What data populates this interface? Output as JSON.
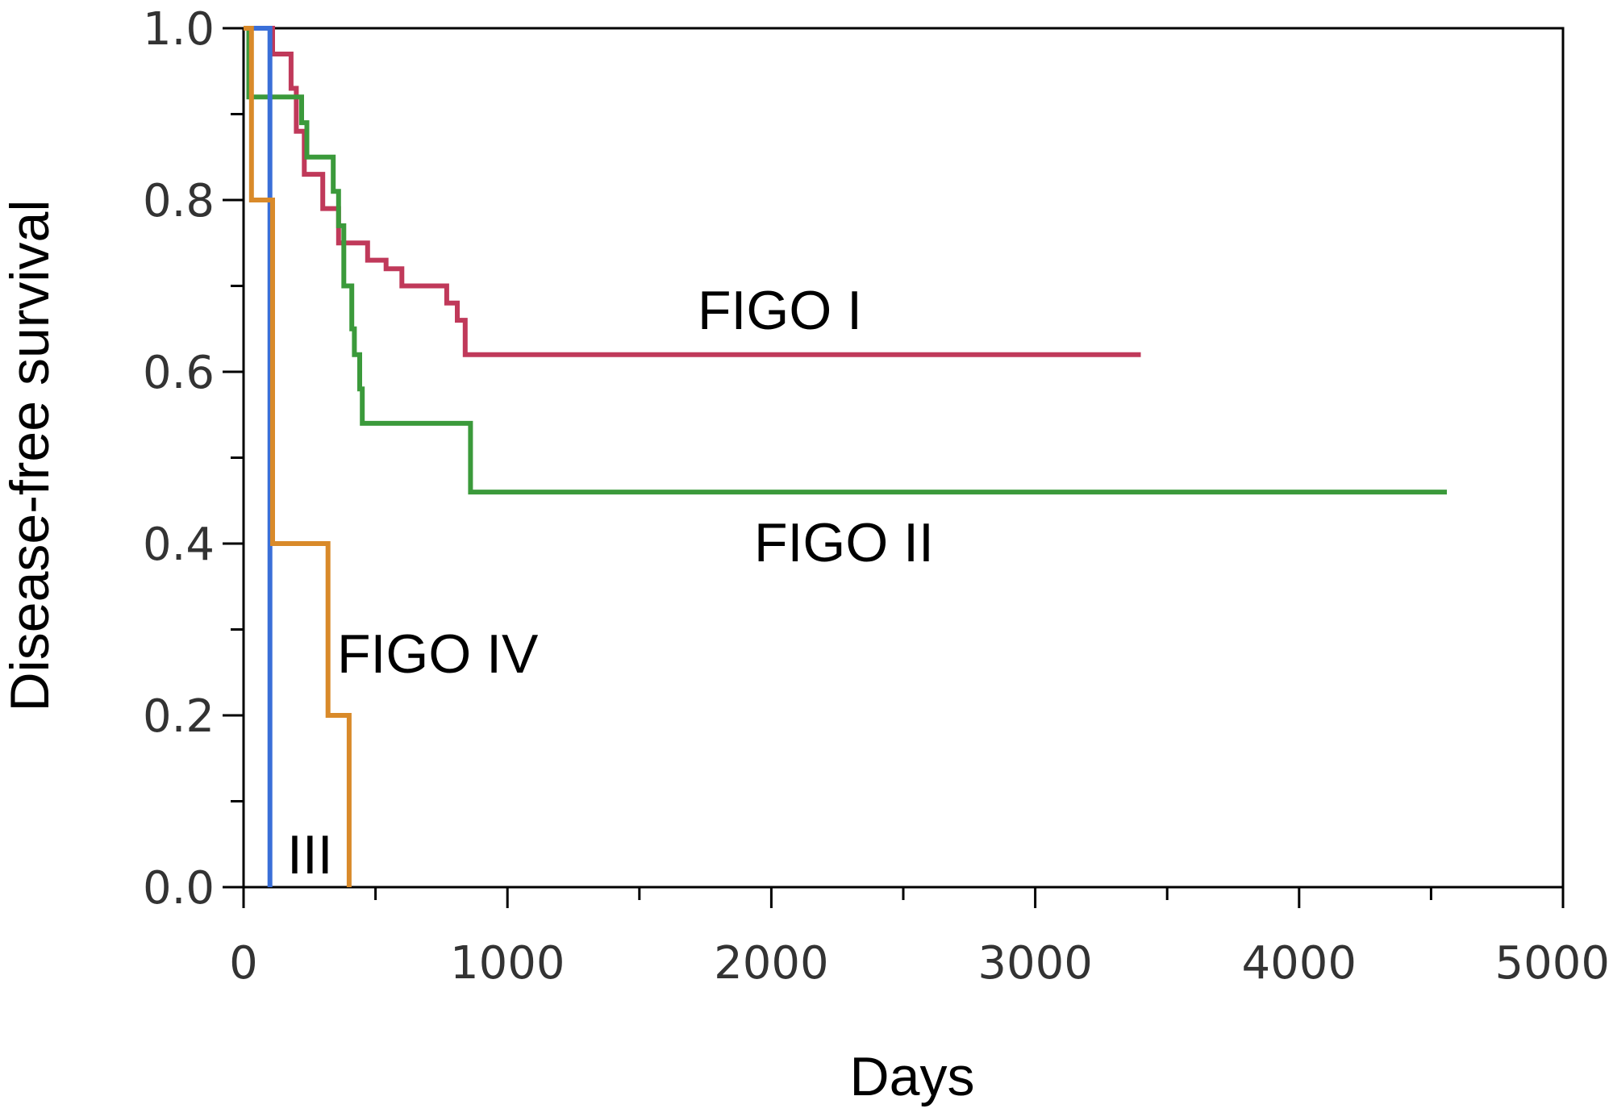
{
  "chart_data": {
    "type": "line",
    "step": true,
    "xlabel": "Days",
    "ylabel": "Disease-free survival",
    "xlim": [
      0,
      5000
    ],
    "ylim": [
      0.0,
      1.0
    ],
    "x_ticks": [
      0,
      1000,
      2000,
      3000,
      4000,
      5000
    ],
    "x_minor_ticks": [
      500,
      1500,
      2500,
      3500,
      4500
    ],
    "x_tick_labels": [
      "0",
      "1000",
      "2000",
      "3000",
      "4000",
      "5000"
    ],
    "y_ticks": [
      0.0,
      0.2,
      0.4,
      0.6,
      0.8,
      1.0
    ],
    "y_minor_ticks": [
      0.1,
      0.3,
      0.5,
      0.7,
      0.9
    ],
    "y_tick_labels": [
      "0.0",
      "0.2",
      "0.4",
      "0.6",
      "0.8",
      "1.0"
    ],
    "grid": false,
    "series": [
      {
        "name": "FIGO I",
        "color": "#c0395a",
        "points": [
          [
            0,
            1.0
          ],
          [
            110,
            1.0
          ],
          [
            110,
            0.97
          ],
          [
            180,
            0.97
          ],
          [
            180,
            0.93
          ],
          [
            200,
            0.93
          ],
          [
            200,
            0.88
          ],
          [
            230,
            0.88
          ],
          [
            230,
            0.83
          ],
          [
            300,
            0.83
          ],
          [
            300,
            0.79
          ],
          [
            360,
            0.79
          ],
          [
            360,
            0.75
          ],
          [
            470,
            0.75
          ],
          [
            470,
            0.73
          ],
          [
            540,
            0.73
          ],
          [
            540,
            0.72
          ],
          [
            600,
            0.72
          ],
          [
            600,
            0.7
          ],
          [
            770,
            0.7
          ],
          [
            770,
            0.68
          ],
          [
            810,
            0.68
          ],
          [
            810,
            0.66
          ],
          [
            840,
            0.66
          ],
          [
            840,
            0.62
          ],
          [
            3400,
            0.62
          ]
        ]
      },
      {
        "name": "FIGO II",
        "color": "#3b9a3b",
        "points": [
          [
            0,
            1.0
          ],
          [
            20,
            1.0
          ],
          [
            20,
            0.92
          ],
          [
            220,
            0.92
          ],
          [
            220,
            0.89
          ],
          [
            240,
            0.89
          ],
          [
            240,
            0.85
          ],
          [
            340,
            0.85
          ],
          [
            340,
            0.81
          ],
          [
            360,
            0.81
          ],
          [
            360,
            0.77
          ],
          [
            380,
            0.77
          ],
          [
            380,
            0.7
          ],
          [
            410,
            0.7
          ],
          [
            410,
            0.65
          ],
          [
            420,
            0.65
          ],
          [
            420,
            0.62
          ],
          [
            440,
            0.62
          ],
          [
            440,
            0.58
          ],
          [
            450,
            0.58
          ],
          [
            450,
            0.54
          ],
          [
            860,
            0.54
          ],
          [
            860,
            0.46
          ],
          [
            4560,
            0.46
          ]
        ]
      },
      {
        "name": "III",
        "color": "#3a6fd8",
        "points": [
          [
            0,
            1.0
          ],
          [
            100,
            1.0
          ],
          [
            100,
            0.0
          ]
        ]
      },
      {
        "name": "FIGO IV",
        "color": "#d98a2a",
        "points": [
          [
            0,
            1.0
          ],
          [
            30,
            1.0
          ],
          [
            30,
            0.8
          ],
          [
            110,
            0.8
          ],
          [
            110,
            0.4
          ],
          [
            320,
            0.4
          ],
          [
            320,
            0.2
          ],
          [
            400,
            0.2
          ],
          [
            400,
            0.0
          ]
        ]
      }
    ],
    "annotations": [
      {
        "text": "FIGO I",
        "series": "FIGO I"
      },
      {
        "text": "FIGO II",
        "series": "FIGO II"
      },
      {
        "text": "FIGO IV",
        "series": "FIGO IV"
      },
      {
        "text": "III",
        "series": "III"
      }
    ]
  }
}
